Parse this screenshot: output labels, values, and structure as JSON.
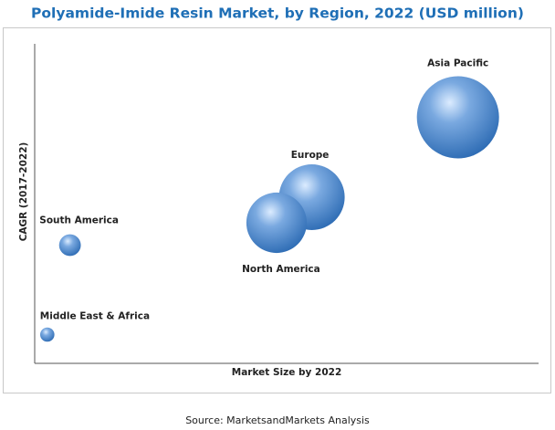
{
  "chart_data": {
    "type": "bubble",
    "title": "Polyamide-Imide Resin Market, by Region, 2022 (USD million)",
    "x_label": "Market Size by 2022",
    "y_label": "CAGR (2017-2022)",
    "source": "Source: MarketsandMarkets Analysis",
    "color": "#2f6db5",
    "xlim": [
      0,
      100
    ],
    "ylim": [
      0,
      100
    ],
    "series": [
      {
        "name": "Asia Pacific",
        "x": 84,
        "y": 77,
        "size": 100
      },
      {
        "name": "Europe",
        "x": 55,
        "y": 52,
        "size": 64
      },
      {
        "name": "North America",
        "x": 48,
        "y": 44,
        "size": 54
      },
      {
        "name": "South America",
        "x": 7,
        "y": 37,
        "size": 7
      },
      {
        "name": "Middle East & Africa",
        "x": 2.5,
        "y": 9,
        "size": 3
      }
    ]
  }
}
